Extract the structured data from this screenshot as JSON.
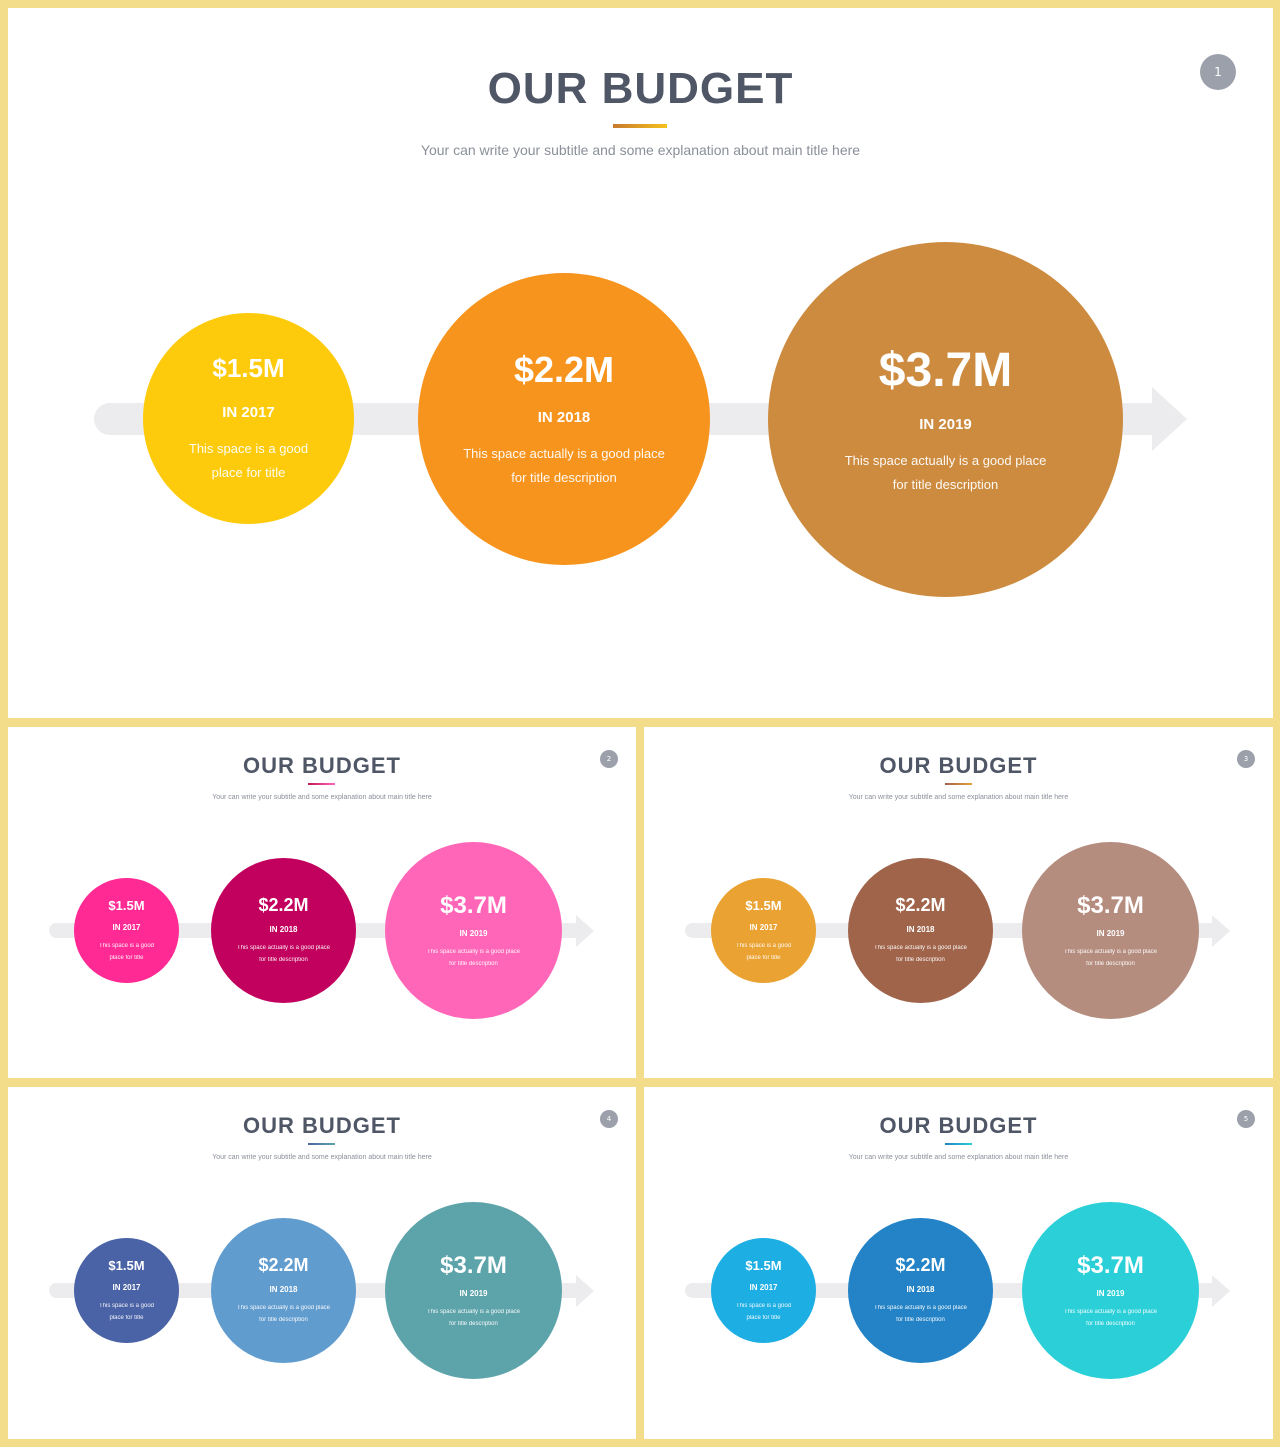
{
  "slides": [
    {
      "title": "OUR BUDGET",
      "subtitle": "Your can write your subtitle and some explanation about main title here",
      "page_number": "1",
      "accent": [
        "#C87A2E",
        "#F5C21C"
      ],
      "circles": [
        {
          "amount": "$1.5M",
          "year": "IN 2017",
          "desc1": "This space is a good",
          "desc2": "place for title",
          "color": "#FDCB0B"
        },
        {
          "amount": "$2.2M",
          "year": "IN 2018",
          "desc1": "This space actually is a good place",
          "desc2": "for title description",
          "color": "#F7941E"
        },
        {
          "amount": "$3.7M",
          "year": "IN 2019",
          "desc1": "This space actually is a good place",
          "desc2": "for title description",
          "color": "#CD8B3F"
        }
      ]
    },
    {
      "title": "OUR BUDGET",
      "subtitle": "Your can write your subtitle and some explanation about main title here",
      "page_number": "2",
      "accent": [
        "#C2185B",
        "#FF66B8"
      ],
      "circles": [
        {
          "amount": "$1.5M",
          "year": "IN 2017",
          "desc1": "This space is a good",
          "desc2": "place for title",
          "color": "#FF2A94"
        },
        {
          "amount": "$2.2M",
          "year": "IN 2018",
          "desc1": "This space actually is a good place",
          "desc2": "for title description",
          "color": "#C2005E"
        },
        {
          "amount": "$3.7M",
          "year": "IN 2019",
          "desc1": "This space actually is a good place",
          "desc2": "for title description",
          "color": "#FF66B8"
        }
      ]
    },
    {
      "title": "OUR BUDGET",
      "subtitle": "Your can write your subtitle and some explanation about main title here",
      "page_number": "3",
      "accent": [
        "#A0624B",
        "#E9A13A"
      ],
      "circles": [
        {
          "amount": "$1.5M",
          "year": "IN 2017",
          "desc1": "This space is a good",
          "desc2": "place for title",
          "color": "#EAA232"
        },
        {
          "amount": "$2.2M",
          "year": "IN 2018",
          "desc1": "This space actually is a good place",
          "desc2": "for title description",
          "color": "#A0644B"
        },
        {
          "amount": "$3.7M",
          "year": "IN 2019",
          "desc1": "This space actually is a good place",
          "desc2": "for title description",
          "color": "#B58D7F"
        }
      ]
    },
    {
      "title": "OUR BUDGET",
      "subtitle": "Your can write your subtitle and some explanation about main title here",
      "page_number": "4",
      "accent": [
        "#4F64A8",
        "#5CA3AA"
      ],
      "circles": [
        {
          "amount": "$1.5M",
          "year": "IN 2017",
          "desc1": "This space is a good",
          "desc2": "place for title",
          "color": "#4A62A6"
        },
        {
          "amount": "$2.2M",
          "year": "IN 2018",
          "desc1": "This space actually is a good place",
          "desc2": "for title description",
          "color": "#619CCF"
        },
        {
          "amount": "$3.7M",
          "year": "IN 2019",
          "desc1": "This space actually is a good place",
          "desc2": "for title description",
          "color": "#5CA3AA"
        }
      ]
    },
    {
      "title": "OUR BUDGET",
      "subtitle": "Your can write your subtitle and some explanation about main title here",
      "page_number": "5",
      "accent": [
        "#2283C6",
        "#2ACDD6"
      ],
      "circles": [
        {
          "amount": "$1.5M",
          "year": "IN 2017",
          "desc1": "This space is a good",
          "desc2": "place for title",
          "color": "#1DAEE3"
        },
        {
          "amount": "$2.2M",
          "year": "IN 2018",
          "desc1": "This space actually is a good place",
          "desc2": "for title description",
          "color": "#2383C6"
        },
        {
          "amount": "$3.7M",
          "year": "IN 2019",
          "desc1": "This space actually is a good place",
          "desc2": "for title description",
          "color": "#2ACFD8"
        }
      ]
    }
  ]
}
